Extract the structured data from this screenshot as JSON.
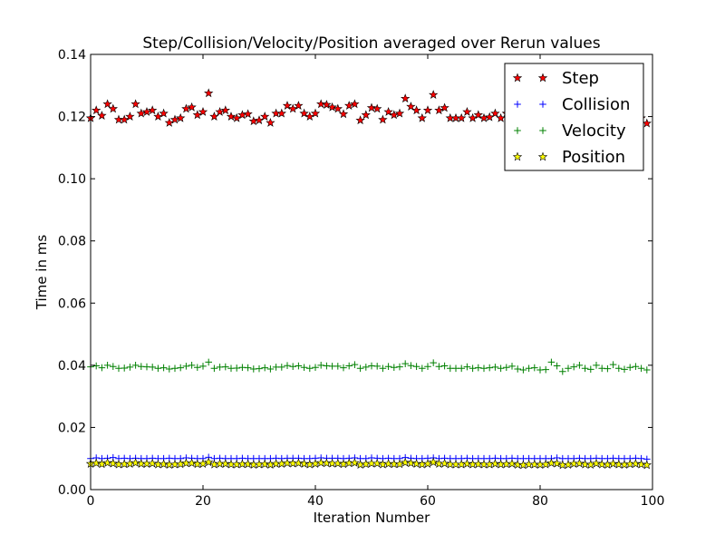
{
  "chart_data": {
    "type": "scatter",
    "title": "Step/Collision/Velocity/Position averaged over Rerun values",
    "xlabel": "Iteration Number",
    "ylabel": "Time in ms",
    "xlim": [
      0,
      100
    ],
    "ylim": [
      0,
      0.14
    ],
    "xticks": [
      0,
      20,
      40,
      60,
      80,
      100
    ],
    "xtick_labels": [
      "0",
      "20",
      "40",
      "60",
      "80",
      "100"
    ],
    "yticks": [
      0,
      0.02,
      0.04,
      0.06,
      0.08,
      0.1,
      0.12,
      0.14
    ],
    "ytick_labels": [
      "0.00",
      "0.02",
      "0.04",
      "0.06",
      "0.08",
      "0.10",
      "0.12",
      "0.14"
    ],
    "grid": false,
    "legend_position": "top-right",
    "x": [
      0,
      1,
      2,
      3,
      4,
      5,
      6,
      7,
      8,
      9,
      10,
      11,
      12,
      13,
      14,
      15,
      16,
      17,
      18,
      19,
      20,
      21,
      22,
      23,
      24,
      25,
      26,
      27,
      28,
      29,
      30,
      31,
      32,
      33,
      34,
      35,
      36,
      37,
      38,
      39,
      40,
      41,
      42,
      43,
      44,
      45,
      46,
      47,
      48,
      49,
      50,
      51,
      52,
      53,
      54,
      55,
      56,
      57,
      58,
      59,
      60,
      61,
      62,
      63,
      64,
      65,
      66,
      67,
      68,
      69,
      70,
      71,
      72,
      73,
      74,
      75,
      76,
      77,
      78,
      79,
      80,
      81,
      82,
      83,
      84,
      85,
      86,
      87,
      88,
      89,
      90,
      91,
      92,
      93,
      94,
      95,
      96,
      97,
      98,
      99
    ],
    "series": [
      {
        "name": "Step",
        "marker": "star",
        "color": "#ff0000",
        "values": [
          0.1195,
          0.122,
          0.1203,
          0.124,
          0.1225,
          0.119,
          0.119,
          0.12,
          0.124,
          0.121,
          0.1215,
          0.122,
          0.12,
          0.121,
          0.118,
          0.119,
          0.1195,
          0.1225,
          0.123,
          0.1205,
          0.1215,
          0.1275,
          0.12,
          0.1215,
          0.122,
          0.12,
          0.1195,
          0.1205,
          0.1208,
          0.1185,
          0.1188,
          0.12,
          0.118,
          0.121,
          0.121,
          0.1235,
          0.1225,
          0.1235,
          0.121,
          0.12,
          0.121,
          0.124,
          0.1238,
          0.123,
          0.1225,
          0.1208,
          0.1235,
          0.124,
          0.1188,
          0.1205,
          0.1228,
          0.1225,
          0.119,
          0.1215,
          0.1205,
          0.121,
          0.1258,
          0.1232,
          0.122,
          0.1195,
          0.122,
          0.127,
          0.122,
          0.1228,
          0.1195,
          0.1195,
          0.1195,
          0.1215,
          0.1195,
          0.1205,
          0.1195,
          0.1198,
          0.121,
          0.1195,
          0.121,
          0.1205,
          0.12,
          0.1195,
          0.1205,
          0.12,
          0.1195,
          0.12,
          0.1195,
          0.121,
          0.12,
          0.1195,
          0.12,
          0.1205,
          0.1195,
          0.12,
          0.121,
          0.12,
          0.1195,
          0.1205,
          0.12,
          0.1195,
          0.12,
          0.1205,
          0.1195,
          0.1178
        ]
      },
      {
        "name": "Collision",
        "marker": "plus",
        "color": "#0000ff",
        "values": [
          0.01,
          0.0102,
          0.01,
          0.0101,
          0.0103,
          0.01,
          0.0101,
          0.01,
          0.0101,
          0.01,
          0.01,
          0.0101,
          0.01,
          0.01,
          0.0101,
          0.01,
          0.01,
          0.0102,
          0.0101,
          0.01,
          0.01,
          0.0104,
          0.01,
          0.0101,
          0.01,
          0.01,
          0.01,
          0.0101,
          0.01,
          0.01,
          0.01,
          0.01,
          0.01,
          0.0101,
          0.01,
          0.0101,
          0.0101,
          0.0101,
          0.01,
          0.01,
          0.0101,
          0.0102,
          0.0101,
          0.0101,
          0.0101,
          0.01,
          0.0101,
          0.0102,
          0.01,
          0.01,
          0.0102,
          0.0101,
          0.01,
          0.0101,
          0.01,
          0.01,
          0.0103,
          0.0101,
          0.01,
          0.01,
          0.0101,
          0.0102,
          0.01,
          0.0101,
          0.01,
          0.01,
          0.01,
          0.0101,
          0.01,
          0.01,
          0.01,
          0.01,
          0.0101,
          0.01,
          0.01,
          0.0101,
          0.01,
          0.01,
          0.01,
          0.01,
          0.01,
          0.01,
          0.01,
          0.0102,
          0.01,
          0.01,
          0.01,
          0.0101,
          0.01,
          0.01,
          0.0101,
          0.01,
          0.01,
          0.0101,
          0.01,
          0.01,
          0.01,
          0.0101,
          0.01,
          0.0098
        ]
      },
      {
        "name": "Velocity",
        "marker": "plus",
        "color": "#008000",
        "values": [
          0.0395,
          0.0398,
          0.0392,
          0.04,
          0.0396,
          0.039,
          0.0391,
          0.0394,
          0.04,
          0.0396,
          0.0395,
          0.0394,
          0.039,
          0.0392,
          0.0388,
          0.039,
          0.0392,
          0.0397,
          0.04,
          0.0393,
          0.0397,
          0.041,
          0.039,
          0.0394,
          0.0395,
          0.039,
          0.0391,
          0.0393,
          0.0392,
          0.0388,
          0.0389,
          0.0392,
          0.0388,
          0.0394,
          0.0394,
          0.0399,
          0.0396,
          0.0398,
          0.0393,
          0.039,
          0.0393,
          0.04,
          0.0398,
          0.0397,
          0.0397,
          0.0392,
          0.0398,
          0.0402,
          0.039,
          0.0394,
          0.0398,
          0.0397,
          0.039,
          0.0396,
          0.0393,
          0.0395,
          0.0405,
          0.0399,
          0.0396,
          0.039,
          0.0396,
          0.0408,
          0.0396,
          0.0398,
          0.039,
          0.039,
          0.039,
          0.0395,
          0.039,
          0.0392,
          0.039,
          0.0392,
          0.0394,
          0.039,
          0.0393,
          0.0397,
          0.0388,
          0.0385,
          0.039,
          0.0392,
          0.0385,
          0.0386,
          0.041,
          0.0398,
          0.038,
          0.039,
          0.0395,
          0.04,
          0.039,
          0.0387,
          0.04,
          0.039,
          0.0389,
          0.0402,
          0.039,
          0.0387,
          0.0393,
          0.0396,
          0.039,
          0.0385
        ]
      },
      {
        "name": "Position",
        "marker": "star",
        "color": "#ffff00",
        "values": [
          0.0083,
          0.0085,
          0.0082,
          0.0086,
          0.0084,
          0.0081,
          0.0082,
          0.0083,
          0.0086,
          0.0083,
          0.0083,
          0.0084,
          0.0081,
          0.0082,
          0.008,
          0.0081,
          0.0082,
          0.0085,
          0.0085,
          0.0082,
          0.0083,
          0.0088,
          0.0081,
          0.0083,
          0.0083,
          0.0081,
          0.0081,
          0.0082,
          0.0082,
          0.008,
          0.0081,
          0.0082,
          0.008,
          0.0083,
          0.0083,
          0.0085,
          0.0084,
          0.0085,
          0.0083,
          0.0081,
          0.0083,
          0.0086,
          0.0085,
          0.0084,
          0.0084,
          0.0082,
          0.0085,
          0.0086,
          0.008,
          0.0082,
          0.0084,
          0.0084,
          0.0081,
          0.0083,
          0.0082,
          0.0082,
          0.0087,
          0.0085,
          0.0083,
          0.0081,
          0.0083,
          0.0088,
          0.0083,
          0.0084,
          0.0081,
          0.0081,
          0.0081,
          0.0083,
          0.0081,
          0.0082,
          0.0081,
          0.0081,
          0.0083,
          0.0081,
          0.0082,
          0.0083,
          0.008,
          0.0079,
          0.0081,
          0.0081,
          0.008,
          0.0081,
          0.0085,
          0.0084,
          0.0079,
          0.008,
          0.0083,
          0.0084,
          0.0081,
          0.008,
          0.0084,
          0.0081,
          0.008,
          0.0083,
          0.0081,
          0.008,
          0.0082,
          0.0083,
          0.0081,
          0.0079
        ]
      }
    ]
  }
}
